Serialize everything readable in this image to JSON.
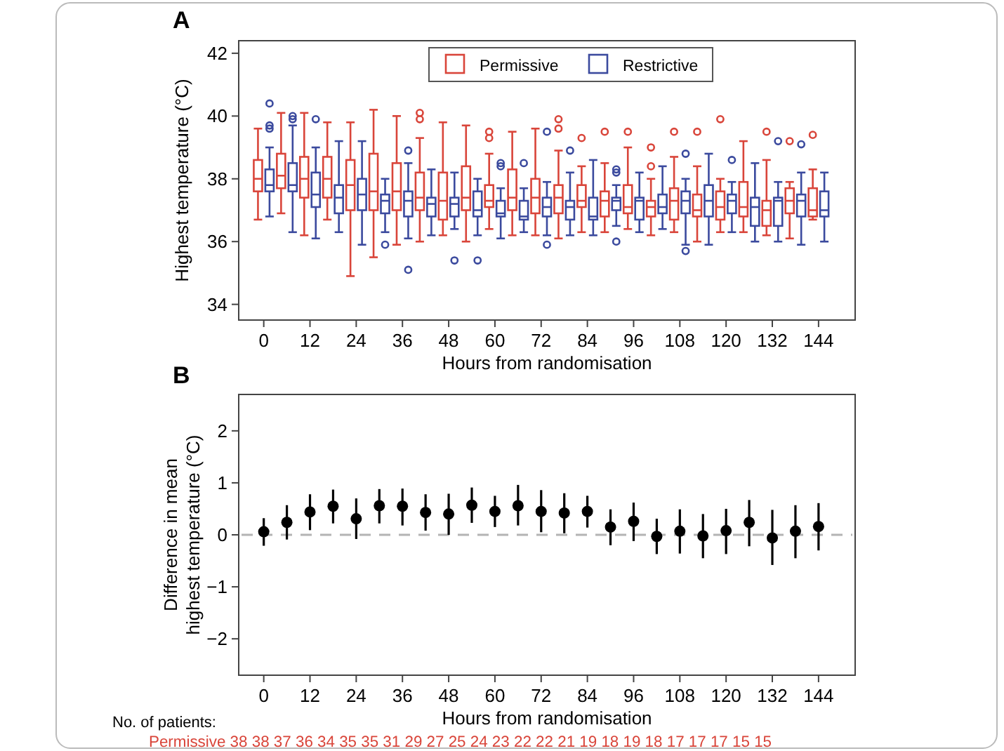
{
  "chart_data": [
    {
      "type": "box",
      "title": "A",
      "xlabel": "Hours from randomisation",
      "ylabel": "Highest temperature (°C)",
      "xlim": [
        -6.5,
        153.5
      ],
      "xticks": [
        0,
        12,
        24,
        36,
        48,
        60,
        72,
        84,
        96,
        108,
        120,
        132,
        144
      ],
      "ylim": [
        33.5,
        42.4
      ],
      "yticks": [
        34,
        36,
        38,
        40,
        42
      ],
      "legend": "top",
      "series": [
        {
          "name": "Permissive",
          "color": "#d9453a",
          "x": [
            0,
            6,
            12,
            18,
            24,
            30,
            36,
            42,
            48,
            54,
            60,
            66,
            72,
            78,
            84,
            90,
            96,
            102,
            108,
            114,
            120,
            126,
            132,
            138,
            144
          ],
          "boxes": [
            {
              "low": 36.7,
              "q1": 37.6,
              "median": 38.0,
              "q3": 38.6,
              "high": 39.6
            },
            {
              "low": 36.9,
              "q1": 37.7,
              "median": 38.1,
              "q3": 38.8,
              "high": 40.1
            },
            {
              "low": 36.2,
              "q1": 37.4,
              "median": 38.0,
              "q3": 38.7,
              "high": 40.1
            },
            {
              "low": 36.7,
              "q1": 37.4,
              "median": 38.0,
              "q3": 38.7,
              "high": 39.8
            },
            {
              "low": 34.9,
              "q1": 37.0,
              "median": 37.8,
              "q3": 38.6,
              "high": 39.8
            },
            {
              "low": 35.5,
              "q1": 37.0,
              "median": 37.6,
              "q3": 38.8,
              "high": 40.2
            },
            {
              "low": 35.9,
              "q1": 37.0,
              "median": 37.6,
              "q3": 38.5,
              "high": 40.0
            },
            {
              "low": 36.0,
              "q1": 37.0,
              "median": 37.4,
              "q3": 38.2,
              "high": 39.3,
              "outliers": [
                40.1,
                39.9
              ]
            },
            {
              "low": 36.2,
              "q1": 36.7,
              "median": 37.3,
              "q3": 38.2,
              "high": 39.8
            },
            {
              "low": 36.0,
              "q1": 37.0,
              "median": 37.4,
              "q3": 38.4,
              "high": 39.7
            },
            {
              "low": 36.4,
              "q1": 37.1,
              "median": 37.3,
              "q3": 37.8,
              "high": 38.8,
              "outliers": [
                39.5,
                39.3
              ]
            },
            {
              "low": 36.2,
              "q1": 37.0,
              "median": 37.4,
              "q3": 38.3,
              "high": 39.5
            },
            {
              "low": 36.2,
              "q1": 36.9,
              "median": 37.4,
              "q3": 38.0,
              "high": 39.6
            },
            {
              "low": 36.1,
              "q1": 36.9,
              "median": 37.4,
              "q3": 37.8,
              "high": 38.9,
              "outliers": [
                39.9,
                39.6
              ]
            },
            {
              "low": 36.3,
              "q1": 37.1,
              "median": 37.3,
              "q3": 37.8,
              "high": 38.4,
              "outliers": [
                39.3
              ]
            },
            {
              "low": 36.3,
              "q1": 36.8,
              "median": 37.3,
              "q3": 37.6,
              "high": 38.5,
              "outliers": [
                39.5
              ]
            },
            {
              "low": 36.4,
              "q1": 36.9,
              "median": 37.1,
              "q3": 37.8,
              "high": 39.0,
              "outliers": [
                39.5
              ]
            },
            {
              "low": 36.2,
              "q1": 36.8,
              "median": 37.1,
              "q3": 37.3,
              "high": 38.0,
              "outliers": [
                39.0,
                38.4
              ]
            },
            {
              "low": 36.3,
              "q1": 36.7,
              "median": 37.3,
              "q3": 37.7,
              "high": 38.7,
              "outliers": [
                39.5
              ]
            },
            {
              "low": 36.0,
              "q1": 36.8,
              "median": 37.0,
              "q3": 37.5,
              "high": 38.4,
              "outliers": [
                39.5
              ]
            },
            {
              "low": 36.3,
              "q1": 36.7,
              "median": 37.1,
              "q3": 37.6,
              "high": 38.0,
              "outliers": [
                39.9
              ]
            },
            {
              "low": 36.3,
              "q1": 36.8,
              "median": 37.1,
              "q3": 37.9,
              "high": 39.2
            },
            {
              "low": 36.2,
              "q1": 36.5,
              "median": 37.0,
              "q3": 37.3,
              "high": 38.6,
              "outliers": [
                39.5
              ]
            },
            {
              "low": 36.1,
              "q1": 36.9,
              "median": 37.3,
              "q3": 37.7,
              "high": 37.9,
              "outliers": [
                39.2
              ]
            },
            {
              "low": 36.7,
              "q1": 36.8,
              "median": 37.0,
              "q3": 37.7,
              "high": 38.3,
              "outliers": [
                39.4
              ]
            }
          ]
        },
        {
          "name": "Restrictive",
          "color": "#3b4a9e",
          "x": [
            0,
            6,
            12,
            18,
            24,
            30,
            36,
            42,
            48,
            54,
            60,
            66,
            72,
            78,
            84,
            90,
            96,
            102,
            108,
            114,
            120,
            126,
            132,
            138,
            144
          ],
          "boxes": [
            {
              "low": 36.8,
              "q1": 37.6,
              "median": 37.8,
              "q3": 38.3,
              "high": 39.0,
              "outliers": [
                40.4,
                39.7,
                39.6
              ]
            },
            {
              "low": 36.3,
              "q1": 37.6,
              "median": 37.8,
              "q3": 38.5,
              "high": 39.7,
              "outliers": [
                40.0,
                39.9
              ]
            },
            {
              "low": 36.1,
              "q1": 37.1,
              "median": 37.5,
              "q3": 38.2,
              "high": 39.0,
              "outliers": [
                39.9
              ]
            },
            {
              "low": 36.3,
              "q1": 36.9,
              "median": 37.4,
              "q3": 37.8,
              "high": 39.2
            },
            {
              "low": 35.9,
              "q1": 37.0,
              "median": 37.5,
              "q3": 38.0,
              "high": 39.2
            },
            {
              "low": 36.3,
              "q1": 36.9,
              "median": 37.3,
              "q3": 37.5,
              "high": 38.0,
              "outliers": [
                35.9
              ]
            },
            {
              "low": 36.1,
              "q1": 36.8,
              "median": 37.3,
              "q3": 37.6,
              "high": 38.5,
              "outliers": [
                38.9,
                35.1
              ]
            },
            {
              "low": 36.2,
              "q1": 36.8,
              "median": 37.2,
              "q3": 37.4,
              "high": 38.3
            },
            {
              "low": 36.4,
              "q1": 36.8,
              "median": 37.2,
              "q3": 37.4,
              "high": 38.2,
              "outliers": [
                35.4
              ]
            },
            {
              "low": 36.2,
              "q1": 36.8,
              "median": 37.0,
              "q3": 37.6,
              "high": 38.0,
              "outliers": [
                35.4
              ]
            },
            {
              "low": 36.1,
              "q1": 36.8,
              "median": 36.9,
              "q3": 37.3,
              "high": 37.7,
              "outliers": [
                38.5,
                38.4
              ]
            },
            {
              "low": 36.3,
              "q1": 36.7,
              "median": 36.8,
              "q3": 37.3,
              "high": 37.7,
              "outliers": [
                38.5
              ]
            },
            {
              "low": 36.2,
              "q1": 36.8,
              "median": 37.1,
              "q3": 37.4,
              "high": 37.9,
              "outliers": [
                39.5,
                35.9
              ]
            },
            {
              "low": 36.2,
              "q1": 36.7,
              "median": 37.1,
              "q3": 37.3,
              "high": 38.2,
              "outliers": [
                38.9
              ]
            },
            {
              "low": 36.2,
              "q1": 36.7,
              "median": 36.8,
              "q3": 37.4,
              "high": 38.6
            },
            {
              "low": 36.5,
              "q1": 37.0,
              "median": 37.3,
              "q3": 37.4,
              "high": 37.8,
              "outliers": [
                38.3,
                38.2,
                36.0
              ]
            },
            {
              "low": 36.3,
              "q1": 36.7,
              "median": 37.3,
              "q3": 37.4,
              "high": 38.2
            },
            {
              "low": 36.4,
              "q1": 36.9,
              "median": 37.1,
              "q3": 37.5,
              "high": 38.4
            },
            {
              "low": 35.9,
              "q1": 36.9,
              "median": 37.3,
              "q3": 37.6,
              "high": 38.0,
              "outliers": [
                38.8,
                35.7
              ]
            },
            {
              "low": 35.9,
              "q1": 36.8,
              "median": 37.3,
              "q3": 37.8,
              "high": 38.8
            },
            {
              "low": 36.3,
              "q1": 36.9,
              "median": 37.3,
              "q3": 37.5,
              "high": 37.9,
              "outliers": [
                38.6
              ]
            },
            {
              "low": 36.0,
              "q1": 36.5,
              "median": 37.1,
              "q3": 37.4,
              "high": 38.5
            },
            {
              "low": 36.0,
              "q1": 36.5,
              "median": 37.3,
              "q3": 37.4,
              "high": 37.9,
              "outliers": [
                39.2
              ]
            },
            {
              "low": 35.9,
              "q1": 36.8,
              "median": 37.3,
              "q3": 37.5,
              "high": 38.2,
              "outliers": [
                39.1
              ]
            },
            {
              "low": 36.0,
              "q1": 36.8,
              "median": 37.0,
              "q3": 37.6,
              "high": 38.2
            }
          ]
        }
      ]
    },
    {
      "type": "scatter",
      "title": "B",
      "xlabel": "Hours from randomisation",
      "ylabel": "Difference in mean\nhighest temperature (°C)",
      "xlim": [
        -6.5,
        153.5
      ],
      "xticks": [
        0,
        12,
        24,
        36,
        48,
        60,
        72,
        84,
        96,
        108,
        120,
        132,
        144
      ],
      "ylim": [
        -2.7,
        2.7
      ],
      "yticks": [
        {
          "value": -2,
          "label": "−2"
        },
        {
          "value": -1,
          "label": "−1"
        },
        0,
        1,
        2
      ],
      "marker": "circle",
      "ref_lines": [
        {
          "axis": "y",
          "value": 0,
          "color": "#b4b4b4",
          "line_style": "dashed"
        }
      ],
      "annotations": [
        "No. of patients:",
        "Permissive 38 38 37 36 34 35 35 31 29 27 25 24 23 22 22 21 19 18 19 18 17 17 17 15 15"
      ],
      "series": [
        {
          "color": "#000000",
          "x": [
            0,
            6,
            12,
            18,
            24,
            30,
            36,
            42,
            48,
            54,
            60,
            66,
            72,
            78,
            84,
            90,
            96,
            102,
            108,
            114,
            120,
            126,
            132,
            138,
            144
          ],
          "values": [
            0.06,
            0.24,
            0.44,
            0.55,
            0.31,
            0.56,
            0.55,
            0.43,
            0.4,
            0.57,
            0.45,
            0.56,
            0.45,
            0.42,
            0.45,
            0.15,
            0.26,
            -0.03,
            0.07,
            -0.02,
            0.08,
            0.24,
            -0.06,
            0.07,
            0.16
          ],
          "errors": [
            [
              -0.21,
              0.32
            ],
            [
              -0.09,
              0.57
            ],
            [
              0.09,
              0.78
            ],
            [
              0.22,
              0.87
            ],
            [
              -0.08,
              0.7
            ],
            [
              0.22,
              0.88
            ],
            [
              0.18,
              0.89
            ],
            [
              0.08,
              0.78
            ],
            [
              0.0,
              0.79
            ],
            [
              0.23,
              0.91
            ],
            [
              0.15,
              0.75
            ],
            [
              0.18,
              0.96
            ],
            [
              0.05,
              0.86
            ],
            [
              0.03,
              0.8
            ],
            [
              0.14,
              0.75
            ],
            [
              -0.2,
              0.49
            ],
            [
              -0.12,
              0.62
            ],
            [
              -0.37,
              0.31
            ],
            [
              -0.36,
              0.49
            ],
            [
              -0.45,
              0.4
            ],
            [
              -0.37,
              0.5
            ],
            [
              -0.22,
              0.67
            ],
            [
              -0.58,
              0.48
            ],
            [
              -0.45,
              0.57
            ],
            [
              -0.3,
              0.61
            ]
          ]
        }
      ]
    }
  ]
}
